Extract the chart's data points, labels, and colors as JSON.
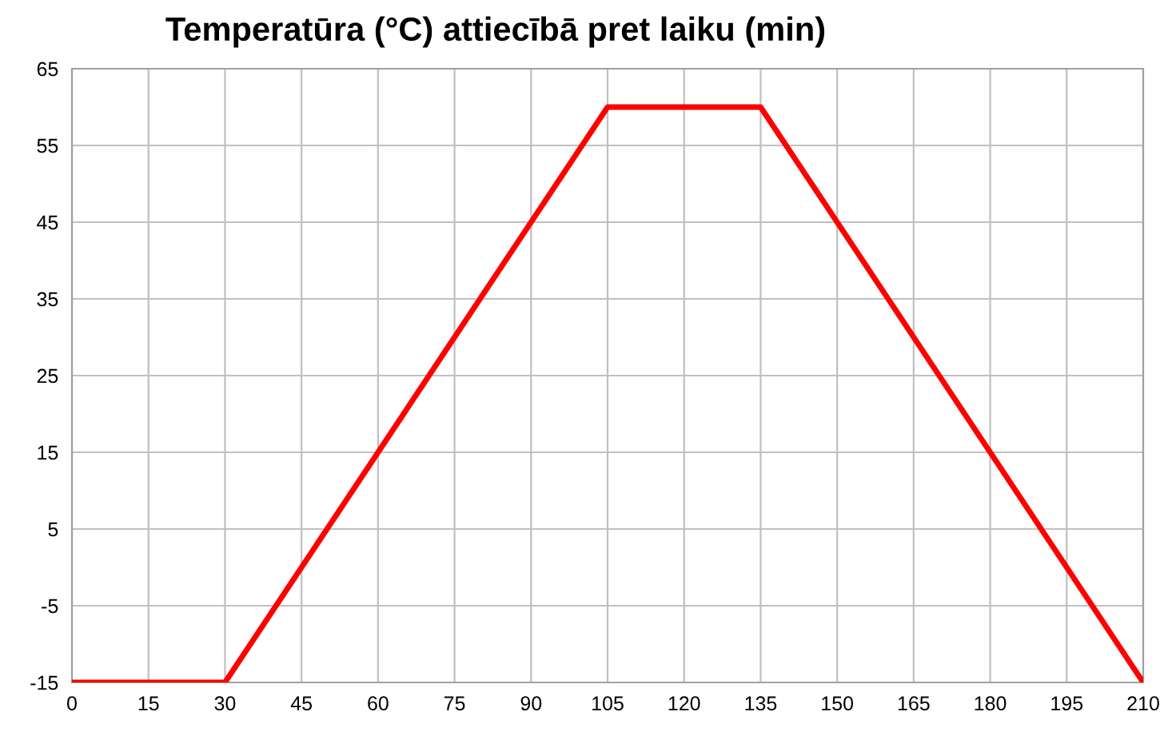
{
  "chart_data": {
    "type": "line",
    "title": "Temperatūra (°C) attiecībā pret laiku (min)",
    "x": [
      0,
      30,
      105,
      135,
      210
    ],
    "series": [
      {
        "color": "#ff0000",
        "values": [
          -15,
          -15,
          60,
          60,
          -15
        ]
      }
    ],
    "xlim": [
      0,
      210
    ],
    "xticks": [
      0,
      15,
      30,
      45,
      60,
      75,
      90,
      105,
      120,
      135,
      150,
      165,
      180,
      195,
      210
    ],
    "ylim": [
      -15,
      65
    ],
    "yticks": [
      -15,
      -5,
      5,
      15,
      25,
      35,
      45,
      55,
      65
    ],
    "grid": true,
    "marker": "none",
    "line_style": "solid",
    "legend": false
  }
}
